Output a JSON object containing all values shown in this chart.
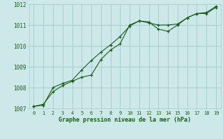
{
  "xlabel": "Graphe pression niveau de la mer (hPa)",
  "bg_color": "#cce8e8",
  "grid_color": "#aacccc",
  "line_color": "#1a5c1a",
  "x": [
    0,
    1,
    2,
    3,
    4,
    5,
    6,
    7,
    8,
    9,
    10,
    11,
    12,
    13,
    14,
    15,
    16,
    17,
    18,
    19
  ],
  "series1": [
    1007.1,
    1007.2,
    1007.8,
    1008.1,
    1008.3,
    1008.5,
    1008.6,
    1009.35,
    1009.8,
    1010.1,
    1011.0,
    1011.2,
    1011.1,
    1011.0,
    1011.0,
    1011.05,
    1011.35,
    1011.55,
    1011.55,
    1011.85
  ],
  "series2": [
    1007.1,
    1007.15,
    1008.0,
    1008.2,
    1008.35,
    1008.85,
    1009.3,
    1009.7,
    1010.05,
    1010.45,
    1010.95,
    1011.2,
    1011.15,
    1010.8,
    1010.7,
    1011.0,
    1011.35,
    1011.55,
    1011.6,
    1011.9
  ],
  "ylim": [
    1007.0,
    1012.0
  ],
  "yticks": [
    1007,
    1008,
    1009,
    1010,
    1011,
    1012
  ],
  "xlim": [
    -0.5,
    19.5
  ],
  "xticks": [
    0,
    1,
    2,
    3,
    4,
    5,
    6,
    7,
    8,
    9,
    10,
    11,
    12,
    13,
    14,
    15,
    16,
    17,
    18,
    19
  ]
}
